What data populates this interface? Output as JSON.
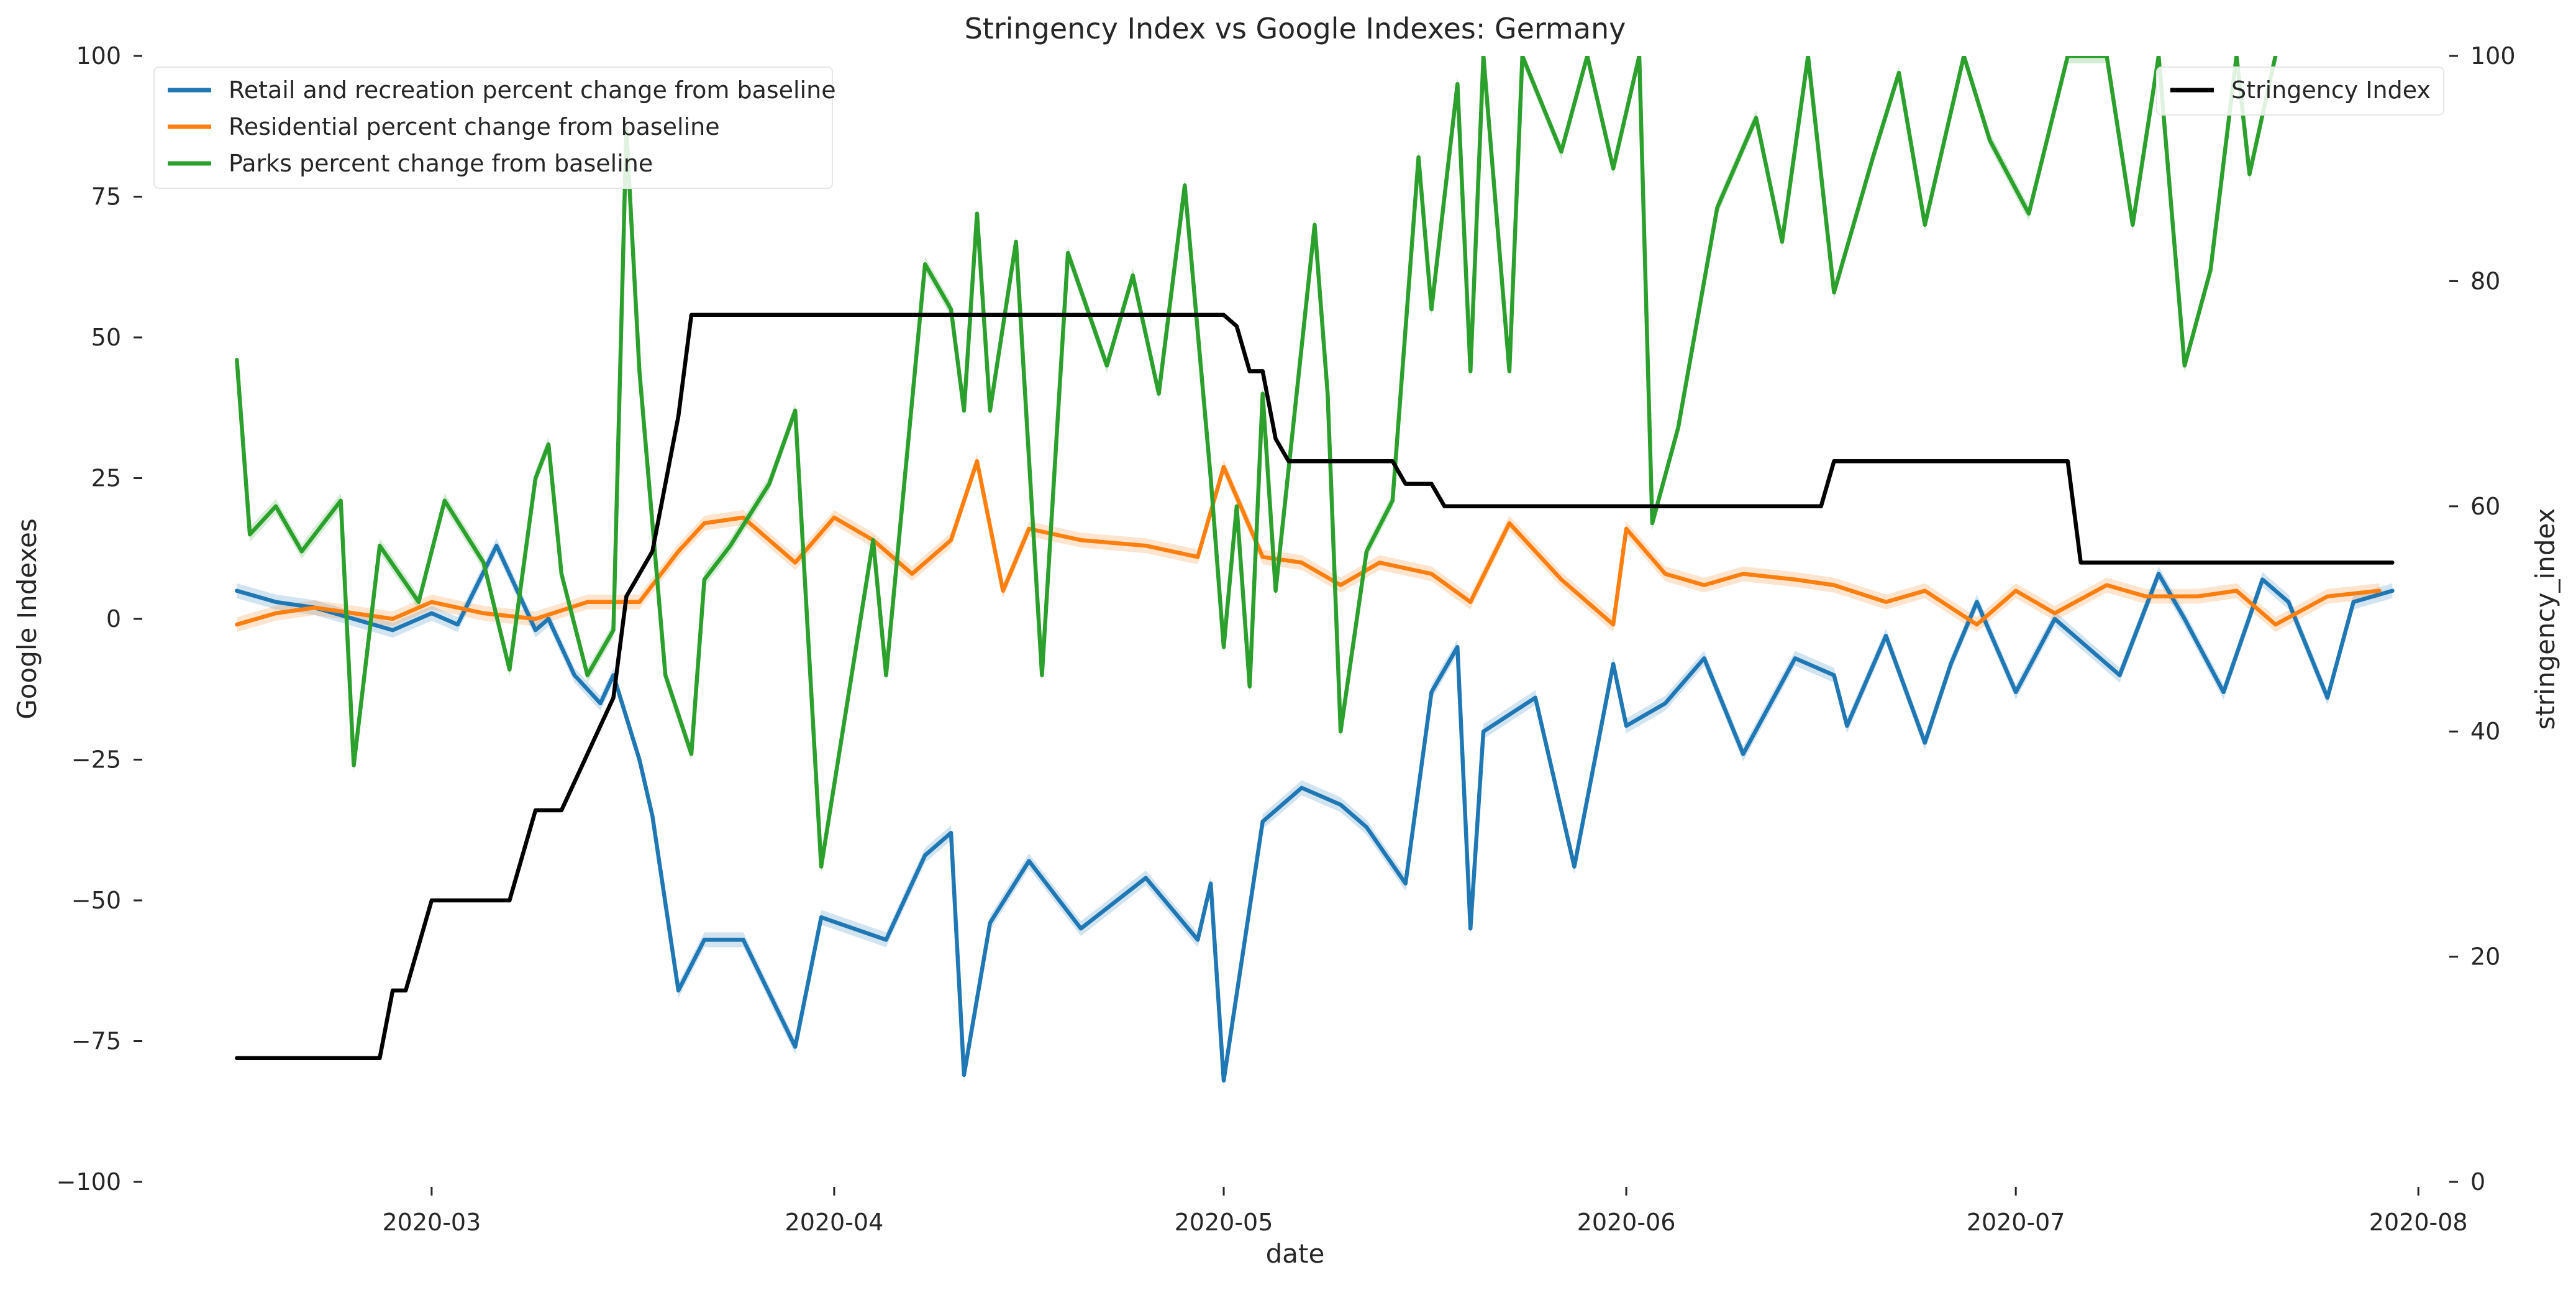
{
  "chart_data": {
    "type": "line",
    "title": "Stringency Index vs Google Indexes:  Germany",
    "xlabel": "date",
    "ylabel_left": "Google Indexes",
    "ylabel_right": "stringency_index",
    "x_ticks": [
      "2020-03",
      "2020-04",
      "2020-05",
      "2020-06",
      "2020-07",
      "2020-08"
    ],
    "x_tick_dates": [
      "2020-03-01",
      "2020-04-01",
      "2020-05-01",
      "2020-06-01",
      "2020-07-01",
      "2020-08-01"
    ],
    "x_range": [
      "2020-02-08",
      "2020-08-03"
    ],
    "ylim_left": [
      -100,
      100
    ],
    "ylim_right": [
      0,
      100
    ],
    "y_ticks_left": [
      "−100",
      "−75",
      "−50",
      "−25",
      "0",
      "25",
      "50",
      "75",
      "100"
    ],
    "y_ticks_right": [
      "0",
      "20",
      "40",
      "60",
      "80",
      "100"
    ],
    "grid": false,
    "legend_left_position": "upper-left",
    "legend_right_position": "upper-right",
    "series": [
      {
        "name": "Retail and recreation percent change from baseline",
        "color": "#1f77b4",
        "axis": "left",
        "dates": [
          "2020-02-15",
          "2020-02-18",
          "2020-02-21",
          "2020-02-24",
          "2020-02-27",
          "2020-03-01",
          "2020-03-03",
          "2020-03-06",
          "2020-03-09",
          "2020-03-10",
          "2020-03-12",
          "2020-03-14",
          "2020-03-15",
          "2020-03-17",
          "2020-03-18",
          "2020-03-20",
          "2020-03-22",
          "2020-03-25",
          "2020-03-29",
          "2020-03-31",
          "2020-04-05",
          "2020-04-08",
          "2020-04-10",
          "2020-04-11",
          "2020-04-13",
          "2020-04-16",
          "2020-04-20",
          "2020-04-25",
          "2020-04-29",
          "2020-04-30",
          "2020-05-01",
          "2020-05-04",
          "2020-05-07",
          "2020-05-10",
          "2020-05-12",
          "2020-05-15",
          "2020-05-17",
          "2020-05-19",
          "2020-05-20",
          "2020-05-21",
          "2020-05-25",
          "2020-05-28",
          "2020-05-31",
          "2020-06-01",
          "2020-06-04",
          "2020-06-07",
          "2020-06-10",
          "2020-06-14",
          "2020-06-17",
          "2020-06-18",
          "2020-06-21",
          "2020-06-24",
          "2020-06-26",
          "2020-06-28",
          "2020-07-01",
          "2020-07-04",
          "2020-07-06",
          "2020-07-09",
          "2020-07-12",
          "2020-07-14",
          "2020-07-17",
          "2020-07-20",
          "2020-07-22",
          "2020-07-25",
          "2020-07-27",
          "2020-07-30"
        ],
        "values": [
          5,
          3,
          2,
          0,
          -2,
          1,
          -1,
          13,
          -2,
          0,
          -10,
          -15,
          -10,
          -25,
          -35,
          -66,
          -57,
          -57,
          -76,
          -53,
          -57,
          -42,
          -38,
          -81,
          -54,
          -43,
          -55,
          -46,
          -57,
          -47,
          -82,
          -36,
          -30,
          -33,
          -37,
          -47,
          -13,
          -5,
          -55,
          -20,
          -14,
          -44,
          -8,
          -19,
          -15,
          -7,
          -24,
          -7,
          -10,
          -19,
          -3,
          -22,
          -8,
          3,
          -13,
          0,
          -4,
          -10,
          8,
          0,
          -13,
          7,
          3,
          -14,
          3,
          5
        ]
      },
      {
        "name": "Residential percent change from baseline",
        "color": "#ff7f0e",
        "axis": "left",
        "dates": [
          "2020-02-15",
          "2020-02-18",
          "2020-02-21",
          "2020-02-24",
          "2020-02-27",
          "2020-03-01",
          "2020-03-05",
          "2020-03-09",
          "2020-03-13",
          "2020-03-17",
          "2020-03-20",
          "2020-03-22",
          "2020-03-25",
          "2020-03-29",
          "2020-04-01",
          "2020-04-04",
          "2020-04-07",
          "2020-04-10",
          "2020-04-12",
          "2020-04-14",
          "2020-04-16",
          "2020-04-20",
          "2020-04-25",
          "2020-04-29",
          "2020-05-01",
          "2020-05-04",
          "2020-05-07",
          "2020-05-10",
          "2020-05-13",
          "2020-05-17",
          "2020-05-20",
          "2020-05-23",
          "2020-05-27",
          "2020-05-31",
          "2020-06-01",
          "2020-06-04",
          "2020-06-07",
          "2020-06-10",
          "2020-06-14",
          "2020-06-17",
          "2020-06-21",
          "2020-06-24",
          "2020-06-28",
          "2020-07-01",
          "2020-07-04",
          "2020-07-08",
          "2020-07-11",
          "2020-07-15",
          "2020-07-18",
          "2020-07-21",
          "2020-07-25",
          "2020-07-29"
        ],
        "values": [
          -1,
          1,
          2,
          1,
          0,
          3,
          1,
          0,
          3,
          3,
          12,
          17,
          18,
          10,
          18,
          14,
          8,
          14,
          28,
          5,
          16,
          14,
          13,
          11,
          27,
          11,
          10,
          6,
          10,
          8,
          3,
          17,
          7,
          -1,
          16,
          8,
          6,
          8,
          7,
          6,
          3,
          5,
          -1,
          5,
          1,
          6,
          4,
          4,
          5,
          -1,
          4,
          5
        ]
      },
      {
        "name": "Parks percent change from baseline",
        "color": "#2ca02c",
        "axis": "left",
        "dates": [
          "2020-02-15",
          "2020-02-16",
          "2020-02-18",
          "2020-02-20",
          "2020-02-23",
          "2020-02-24",
          "2020-02-26",
          "2020-02-29",
          "2020-03-02",
          "2020-03-05",
          "2020-03-07",
          "2020-03-09",
          "2020-03-10",
          "2020-03-11",
          "2020-03-13",
          "2020-03-15",
          "2020-03-16",
          "2020-03-17",
          "2020-03-19",
          "2020-03-21",
          "2020-03-22",
          "2020-03-24",
          "2020-03-27",
          "2020-03-29",
          "2020-03-31",
          "2020-04-04",
          "2020-04-05",
          "2020-04-08",
          "2020-04-10",
          "2020-04-11",
          "2020-04-12",
          "2020-04-13",
          "2020-04-15",
          "2020-04-17",
          "2020-04-19",
          "2020-04-22",
          "2020-04-24",
          "2020-04-26",
          "2020-04-28",
          "2020-04-30",
          "2020-05-01",
          "2020-05-02",
          "2020-05-03",
          "2020-05-04",
          "2020-05-05",
          "2020-05-08",
          "2020-05-09",
          "2020-05-10",
          "2020-05-12",
          "2020-05-14",
          "2020-05-16",
          "2020-05-17",
          "2020-05-19",
          "2020-05-20",
          "2020-05-21",
          "2020-05-23",
          "2020-05-24",
          "2020-05-27",
          "2020-05-29",
          "2020-05-31",
          "2020-06-02",
          "2020-06-03",
          "2020-06-05",
          "2020-06-08",
          "2020-06-11",
          "2020-06-13",
          "2020-06-15",
          "2020-06-17",
          "2020-06-20",
          "2020-06-22",
          "2020-06-24",
          "2020-06-27",
          "2020-06-29",
          "2020-07-02",
          "2020-07-05",
          "2020-07-08",
          "2020-07-10",
          "2020-07-12",
          "2020-07-14",
          "2020-07-16",
          "2020-07-18",
          "2020-07-19",
          "2020-07-21"
        ],
        "values": [
          46,
          15,
          20,
          12,
          21,
          -26,
          13,
          3,
          21,
          10,
          -9,
          25,
          31,
          8,
          -10,
          -2,
          87,
          44,
          -10,
          -24,
          7,
          13,
          24,
          37,
          -44,
          14,
          -10,
          63,
          55,
          37,
          72,
          37,
          67,
          -10,
          65,
          45,
          61,
          40,
          77,
          25,
          -5,
          20,
          -12,
          40,
          5,
          70,
          40,
          -20,
          12,
          21,
          82,
          55,
          95,
          44,
          120,
          44,
          115,
          83,
          105,
          80,
          110,
          17,
          34,
          73,
          89,
          67,
          102,
          58,
          82,
          97,
          70,
          110,
          85,
          72,
          105,
          110,
          70,
          109,
          45,
          62,
          100,
          79,
          110
        ]
      },
      {
        "name": "Stringency Index",
        "color": "#000000",
        "axis": "right",
        "dates": [
          "2020-02-15",
          "2020-02-26",
          "2020-02-27",
          "2020-02-28",
          "2020-03-01",
          "2020-03-07",
          "2020-03-09",
          "2020-03-11",
          "2020-03-15",
          "2020-03-16",
          "2020-03-18",
          "2020-03-20",
          "2020-03-21",
          "2020-03-22",
          "2020-05-01",
          "2020-05-02",
          "2020-05-03",
          "2020-05-04",
          "2020-05-05",
          "2020-05-06",
          "2020-05-14",
          "2020-05-15",
          "2020-05-17",
          "2020-05-18",
          "2020-06-16",
          "2020-06-17",
          "2020-07-05",
          "2020-07-06",
          "2020-07-30"
        ],
        "values": [
          11,
          11,
          17,
          17,
          25,
          25,
          33,
          33,
          43,
          52,
          56,
          68,
          77,
          77,
          77,
          76,
          72,
          72,
          66,
          64,
          64,
          62,
          62,
          60,
          60,
          64,
          64,
          55,
          55
        ]
      }
    ]
  }
}
